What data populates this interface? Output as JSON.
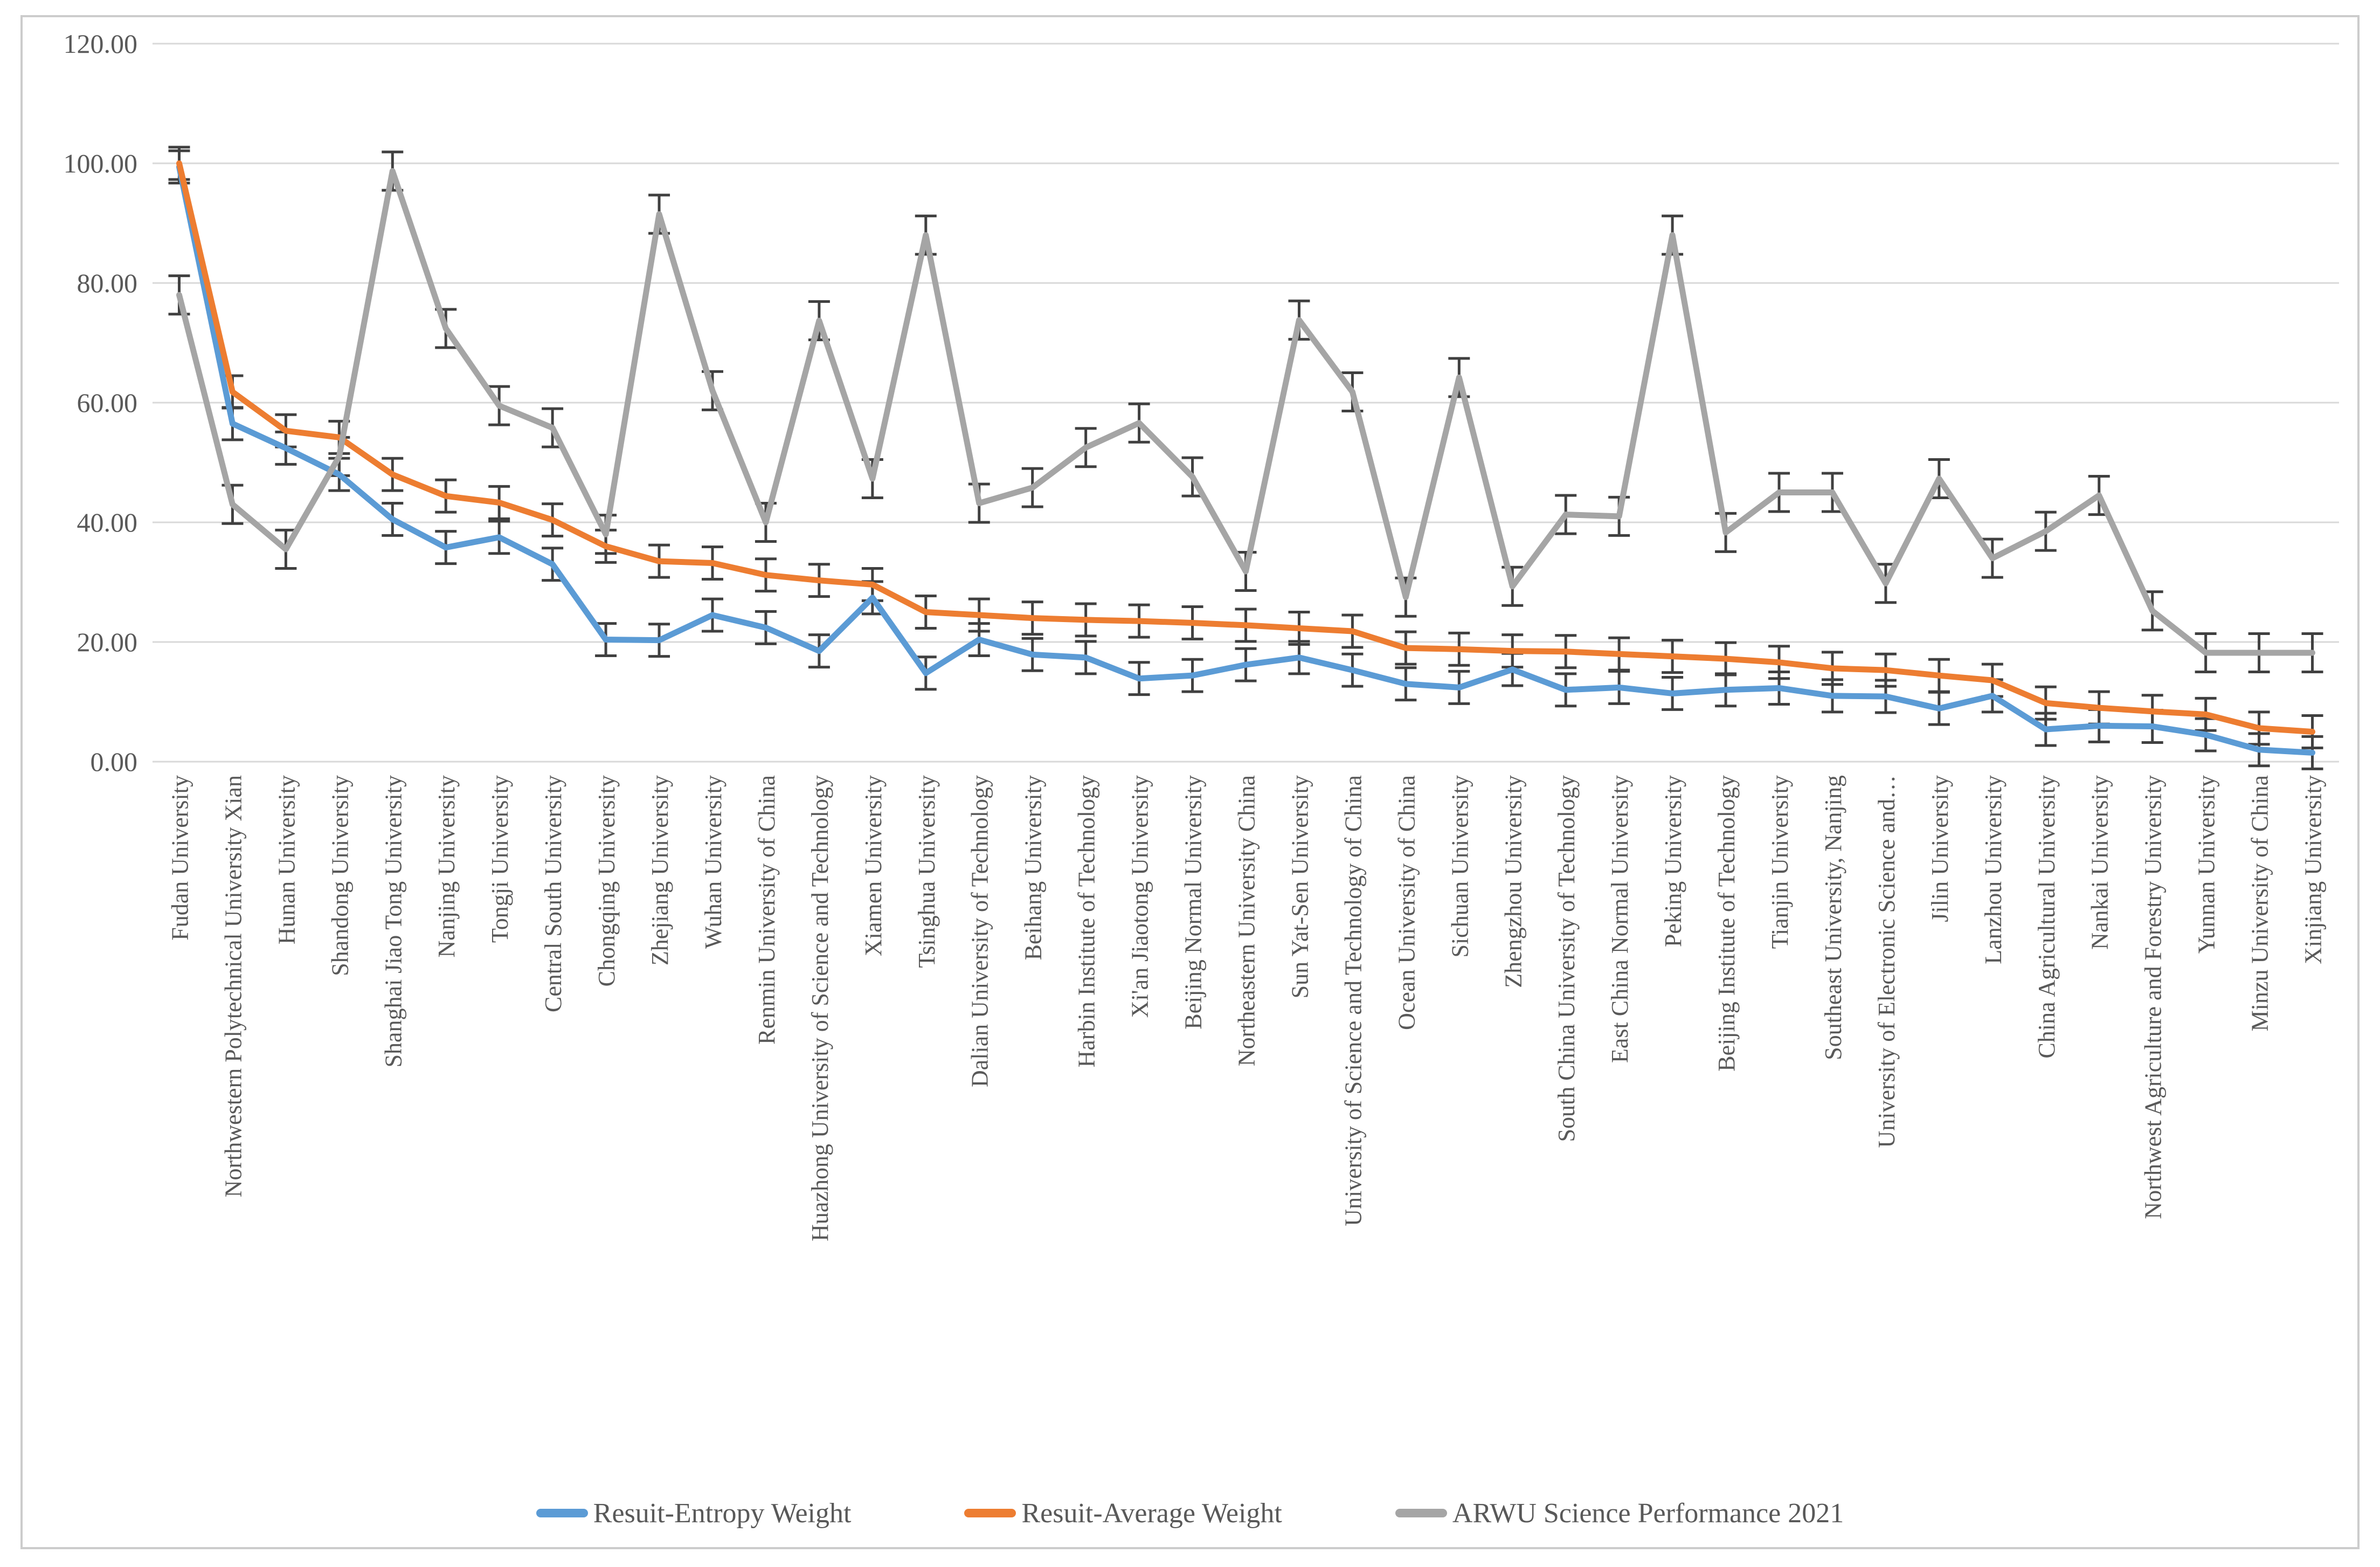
{
  "styles": {
    "background": "#FFFFFF",
    "text_color": "#595959",
    "grid_color": "#D9D9D9",
    "chart_border_color": "#CCCCCC",
    "error_bar_color": "#404040"
  },
  "chart_data": {
    "type": "line",
    "title": "",
    "xlabel": "",
    "ylabel": "",
    "grid": true,
    "error_bars": true,
    "legend_position": "bottom",
    "y_axis": {
      "min": 0,
      "max": 120,
      "step": 20,
      "tick_labels": [
        "0.00",
        "20.00",
        "40.00",
        "60.00",
        "80.00",
        "100.00",
        "120.00"
      ]
    },
    "categories": [
      "Fudan University",
      "Northwestern Polytechnical University Xian",
      "Hunan University",
      "Shandong University",
      "Shanghai Jiao Tong University",
      "Nanjing University",
      "Tongji University",
      "Central South University",
      "Chongqing University",
      "Zhejiang University",
      "Wuhan University",
      "Renmin University of China",
      "Huazhong University of Science and Technology",
      "Xiamen University",
      "Tsinghua University",
      "Dalian University of Technology",
      "Beihang University",
      "Harbin Institute of Technology",
      "Xi'an Jiaotong University",
      "Beijing Normal University",
      "Northeastern University China",
      "Sun Yat-Sen University",
      "University of Science and Technology of China",
      "Ocean University of China",
      "Sichuan University",
      "Zhengzhou University",
      "South China University of Technology",
      "East China Normal University",
      "Peking University",
      "Beijing Institute of Technology",
      "Tianjin University",
      "Southeast University, Nanjing",
      "University of Electronic Science and…",
      "Jilin University",
      "Lanzhou University",
      "China Agricultural University",
      "Nankai University",
      "Northwest Agriculture and Forestry University",
      "Yunnan University",
      "Minzu University of China",
      "Xinjiang University"
    ],
    "series": [
      {
        "name": "Resuit-Entropy Weight",
        "color": "#5B9BD5",
        "error": 2.7,
        "values": [
          99.4,
          56.5,
          52.4,
          48.0,
          40.5,
          35.8,
          37.5,
          33.0,
          20.4,
          20.3,
          24.5,
          22.4,
          18.5,
          27.4,
          14.8,
          20.4,
          17.9,
          17.4,
          13.9,
          14.4,
          16.2,
          17.4,
          15.3,
          13.0,
          12.4,
          15.4,
          12.0,
          12.4,
          11.4,
          12.0,
          12.3,
          11.0,
          10.9,
          8.9,
          11.0,
          5.4,
          6.0,
          5.9,
          4.5,
          2.0,
          1.5
        ]
      },
      {
        "name": "Resuit-Average Weight",
        "color": "#ED7D31",
        "error": 2.7,
        "values": [
          100.0,
          61.8,
          55.3,
          54.2,
          48.0,
          44.4,
          43.3,
          40.4,
          36.0,
          33.5,
          33.2,
          31.2,
          30.3,
          29.6,
          25.0,
          24.5,
          24.0,
          23.7,
          23.5,
          23.2,
          22.8,
          22.3,
          21.8,
          19.0,
          18.8,
          18.5,
          18.4,
          18.0,
          17.6,
          17.2,
          16.6,
          15.6,
          15.3,
          14.4,
          13.6,
          9.8,
          9.0,
          8.4,
          7.9,
          5.6,
          5.0
        ]
      },
      {
        "name": "ARWU Science Performance 2021",
        "color": "#A5A5A5",
        "error": 3.2,
        "values": [
          78.0,
          43.0,
          35.5,
          51.0,
          98.7,
          72.4,
          59.5,
          55.8,
          38.0,
          91.5,
          62.0,
          40.0,
          73.7,
          47.3,
          88.0,
          43.2,
          45.8,
          52.5,
          56.6,
          47.6,
          31.8,
          73.8,
          61.8,
          27.5,
          64.2,
          29.3,
          41.3,
          41.0,
          88.0,
          38.3,
          45.0,
          45.0,
          29.8,
          47.3,
          34.0,
          38.5,
          44.5,
          25.2,
          18.2,
          18.2,
          18.2
        ]
      }
    ]
  }
}
